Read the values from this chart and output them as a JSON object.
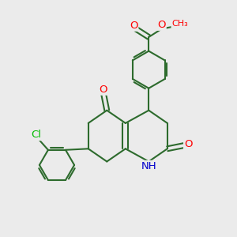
{
  "background_color": "#ebebeb",
  "bond_color": "#2d6b2d",
  "bond_width": 1.5,
  "atom_colors": {
    "O": "#ff0000",
    "N": "#0000cc",
    "Cl": "#00bb00",
    "C": "#2d6b2d"
  },
  "font_size_atom": 9.5,
  "font_size_ch3": 8.0
}
